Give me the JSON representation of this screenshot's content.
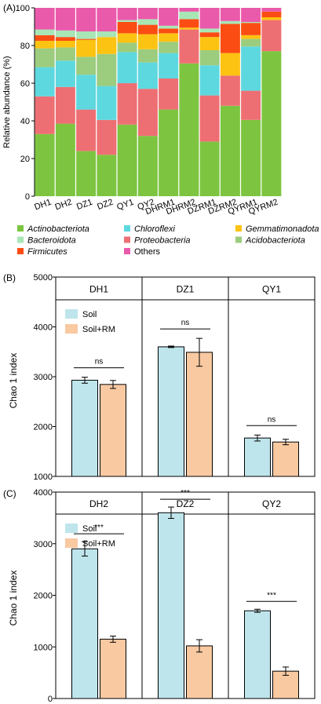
{
  "chart_data": [
    {
      "panel": "(A)",
      "type": "bar",
      "stacked": true,
      "ylabel": "Relative abundance (%)",
      "ylim": [
        0,
        100
      ],
      "yticks": [
        0,
        20,
        40,
        60,
        80,
        100
      ],
      "categories": [
        "DH1",
        "DH2",
        "DZ1",
        "DZ2",
        "QY1",
        "QY2",
        "DHRM1",
        "DHRM2",
        "DZRM1",
        "DZRM2",
        "QYRM1",
        "QYRM2"
      ],
      "series": [
        {
          "name": "Actinobacteriota",
          "color": "#7dc540",
          "values": [
            33,
            38.5,
            24,
            22,
            38,
            32,
            46,
            70.5,
            29,
            48,
            40.5,
            77
          ]
        },
        {
          "name": "Proteobacteria",
          "color": "#ee6f73",
          "values": [
            20,
            19.5,
            22,
            18.5,
            22,
            25,
            16.5,
            18,
            24.5,
            16,
            15.5,
            16.5
          ]
        },
        {
          "name": "Chloroflexi",
          "color": "#5ed8df",
          "values": [
            15.5,
            14,
            18.5,
            18,
            16.5,
            14,
            13.5,
            0,
            16,
            0,
            23.5,
            0
          ]
        },
        {
          "name": "Acidobacteriota",
          "color": "#9ccc7e",
          "values": [
            10,
            7,
            9.5,
            17,
            5,
            7,
            6,
            0,
            8,
            0,
            4,
            0
          ]
        },
        {
          "name": "Gemmatimonadota",
          "color": "#fcc313",
          "values": [
            4,
            3.5,
            9,
            9,
            5,
            8,
            4.5,
            1,
            7,
            12,
            2,
            1.5
          ]
        },
        {
          "name": "Firmicutes",
          "color": "#fb4d13",
          "values": [
            3,
            2,
            0.5,
            0,
            6,
            5,
            2.5,
            4.5,
            2.5,
            15.5,
            6.5,
            3
          ]
        },
        {
          "name": "Bacteroidota",
          "color": "#a8e6b6",
          "values": [
            3,
            3.5,
            4,
            3,
            1,
            3,
            1.5,
            4,
            2,
            1.5,
            0.5,
            0
          ]
        },
        {
          "name": "Others",
          "color": "#ea5aab",
          "values": [
            11.5,
            12,
            12.5,
            12.5,
            6.5,
            6,
            9.5,
            2,
            11,
            7,
            7.5,
            2
          ]
        }
      ],
      "legend": [
        {
          "name": "Actinobacteriota",
          "color": "#7dc540",
          "italic": true
        },
        {
          "name": "Chloroflexi",
          "color": "#5ed8df",
          "italic": true
        },
        {
          "name": "Gemmatimonadota",
          "color": "#fcc313",
          "italic": true
        },
        {
          "name": "Bacteroidota",
          "color": "#a8e6b6",
          "italic": true
        },
        {
          "name": "Proteobacteria",
          "color": "#ee6f73",
          "italic": true
        },
        {
          "name": "Acidobacteriota",
          "color": "#9ccc7e",
          "italic": true
        },
        {
          "name": "Firmicutes",
          "color": "#fb4d13",
          "italic": true
        },
        {
          "name": "Others",
          "color": "#ea5aab",
          "italic": false
        }
      ]
    },
    {
      "panel": "(B)",
      "type": "bar",
      "ylabel": "Chao 1 index",
      "ylim": [
        1000,
        5000
      ],
      "yticks": [
        1000,
        2000,
        3000,
        4000,
        5000
      ],
      "groups": [
        "DH1",
        "DZ1",
        "QY1"
      ],
      "series": [
        {
          "name": "Soil",
          "color": "#bfe5ec",
          "values": [
            2930,
            3600,
            1770
          ],
          "errors": [
            60,
            15,
            60
          ]
        },
        {
          "name": "Soil+RM",
          "color": "#f9c9a2",
          "values": [
            2845,
            3490,
            1690
          ],
          "errors": [
            80,
            280,
            55
          ]
        }
      ],
      "significance": [
        "ns",
        "ns",
        "ns"
      ]
    },
    {
      "panel": "(C)",
      "type": "bar",
      "ylabel": "Chao 1 index",
      "ylim": [
        0,
        4000
      ],
      "yticks": [
        0,
        1000,
        2000,
        3000,
        4000
      ],
      "groups": [
        "DH2",
        "DZ2",
        "QY2"
      ],
      "series": [
        {
          "name": "Soil",
          "color": "#bfe5ec",
          "values": [
            2900,
            3600,
            1700
          ],
          "errors": [
            140,
            110,
            30
          ]
        },
        {
          "name": "Soil+RM",
          "color": "#f9c9a2",
          "values": [
            1150,
            1020,
            530
          ],
          "errors": [
            60,
            120,
            80
          ]
        }
      ],
      "significance": [
        "***",
        "***",
        "***"
      ]
    }
  ]
}
